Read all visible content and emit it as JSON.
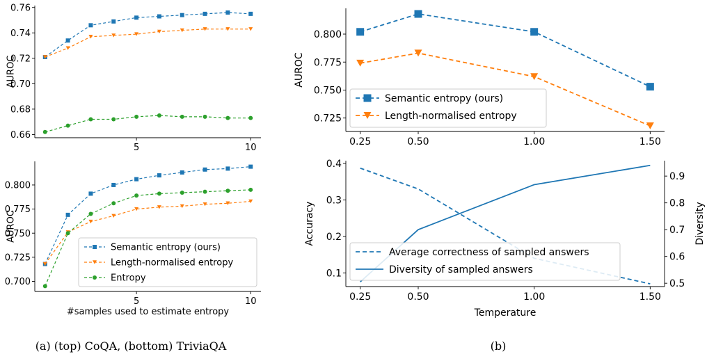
{
  "captions": {
    "left": "(a) (top) CoQA, (bottom) TriviaQA",
    "right": "(b)"
  },
  "colors": {
    "blue": "#1f77b4",
    "orange": "#ff7f0e",
    "green": "#2ca02c"
  },
  "chart_data": [
    {
      "id": "coqa",
      "type": "line",
      "title": "",
      "xlabel": "",
      "ylabel": "AUROC",
      "xlim": [
        0.55,
        10.45
      ],
      "ylim": [
        0.6575,
        0.7615
      ],
      "xticks": [
        5,
        10
      ],
      "xtick_labels": [
        "5",
        "10"
      ],
      "yticks": [
        0.66,
        0.68,
        0.7,
        0.72,
        0.74,
        0.76
      ],
      "ytick_labels": [
        "0.66",
        "0.68",
        "0.70",
        "0.72",
        "0.74",
        "0.76"
      ],
      "x": [
        1,
        2,
        3,
        4,
        5,
        6,
        7,
        8,
        9,
        10
      ],
      "series": [
        {
          "key": "semantic",
          "color": "#1f77b4",
          "marker": "square",
          "dash": true,
          "values": [
            0.721,
            0.734,
            0.746,
            0.749,
            0.752,
            0.753,
            0.754,
            0.755,
            0.756,
            0.755
          ]
        },
        {
          "key": "length",
          "color": "#ff7f0e",
          "marker": "triangle-down",
          "dash": true,
          "values": [
            0.721,
            0.728,
            0.737,
            0.738,
            0.739,
            0.741,
            0.742,
            0.743,
            0.743,
            0.743
          ]
        },
        {
          "key": "entropy",
          "color": "#2ca02c",
          "marker": "circle",
          "dash": true,
          "values": [
            0.662,
            0.667,
            0.672,
            0.672,
            0.674,
            0.675,
            0.674,
            0.674,
            0.673,
            0.673
          ]
        }
      ],
      "legend": null
    },
    {
      "id": "triviaqa",
      "type": "line",
      "title": "",
      "xlabel": "#samples used to estimate entropy",
      "ylabel": "AUROC",
      "xlim": [
        0.55,
        10.45
      ],
      "ylim": [
        0.6895,
        0.8245
      ],
      "xticks": [
        5,
        10
      ],
      "xtick_labels": [
        "5",
        "10"
      ],
      "yticks": [
        0.7,
        0.725,
        0.75,
        0.775,
        0.8
      ],
      "ytick_labels": [
        "0.700",
        "0.725",
        "0.750",
        "0.775",
        "0.800"
      ],
      "x": [
        1,
        2,
        3,
        4,
        5,
        6,
        7,
        8,
        9,
        10
      ],
      "series": [
        {
          "key": "semantic",
          "name": "Semantic entropy (ours)",
          "color": "#1f77b4",
          "marker": "square",
          "dash": true,
          "values": [
            0.718,
            0.769,
            0.791,
            0.8,
            0.806,
            0.81,
            0.813,
            0.816,
            0.817,
            0.819
          ]
        },
        {
          "key": "length",
          "name": "Length-normalised entropy",
          "color": "#ff7f0e",
          "marker": "triangle-down",
          "dash": true,
          "values": [
            0.718,
            0.751,
            0.762,
            0.768,
            0.775,
            0.777,
            0.778,
            0.78,
            0.781,
            0.783
          ]
        },
        {
          "key": "entropy",
          "name": "Entropy",
          "color": "#2ca02c",
          "marker": "circle",
          "dash": true,
          "values": [
            0.695,
            0.75,
            0.77,
            0.781,
            0.789,
            0.791,
            0.792,
            0.793,
            0.794,
            0.795
          ]
        }
      ],
      "legend": "bottom-right"
    },
    {
      "id": "temperature-auroc",
      "type": "line",
      "title": "",
      "xlabel": "",
      "ylabel": "AUROC",
      "xlim": [
        0.188,
        1.562
      ],
      "ylim": [
        0.713,
        0.823
      ],
      "xticks": [
        0.25,
        0.5,
        1.0,
        1.5
      ],
      "xtick_labels": [
        "0.25",
        "0.50",
        "1.00",
        "1.50"
      ],
      "yticks": [
        0.725,
        0.75,
        0.775,
        0.8
      ],
      "ytick_labels": [
        "0.725",
        "0.750",
        "0.775",
        "0.800"
      ],
      "x": [
        0.25,
        0.5,
        1.0,
        1.5
      ],
      "series": [
        {
          "key": "semantic",
          "name": "Semantic entropy (ours)",
          "color": "#1f77b4",
          "marker": "square",
          "dash": true,
          "values": [
            0.802,
            0.818,
            0.802,
            0.753
          ]
        },
        {
          "key": "length",
          "name": "Length-normalised entropy",
          "color": "#ff7f0e",
          "marker": "triangle-down",
          "dash": true,
          "values": [
            0.774,
            0.783,
            0.762,
            0.718
          ]
        }
      ],
      "legend": "lower-left"
    },
    {
      "id": "temperature-accuracy-diversity",
      "type": "line",
      "title": "",
      "xlabel": "Temperature",
      "ylabel": "Accuracy",
      "ylabel_right": "Diversity",
      "xlim": [
        0.188,
        1.562
      ],
      "ylim": [
        0.0625,
        0.4075
      ],
      "ylim_right": [
        0.4875,
        0.9575
      ],
      "xticks": [
        0.25,
        0.5,
        1.0,
        1.5
      ],
      "xtick_labels": [
        "0.25",
        "0.50",
        "1.00",
        "1.50"
      ],
      "yticks": [
        0.1,
        0.2,
        0.3,
        0.4
      ],
      "ytick_labels": [
        "0.1",
        "0.2",
        "0.3",
        "0.4"
      ],
      "yticks_right": [
        0.5,
        0.6,
        0.7,
        0.8,
        0.9
      ],
      "ytick_labels_right": [
        "0.5",
        "0.6",
        "0.7",
        "0.8",
        "0.9"
      ],
      "x": [
        0.25,
        0.5,
        1.0,
        1.5
      ],
      "series": [
        {
          "key": "correctness",
          "name": "Average correctness of sampled answers",
          "color": "#1f77b4",
          "dash": true,
          "axis": "left",
          "values": [
            0.387,
            0.33,
            0.14,
            0.07
          ]
        },
        {
          "key": "diversity",
          "name": "Diversity of sampled answers",
          "color": "#1f77b4",
          "dash": false,
          "axis": "right",
          "values": [
            0.505,
            0.7,
            0.868,
            0.94
          ]
        }
      ],
      "legend": "lower-left"
    }
  ]
}
